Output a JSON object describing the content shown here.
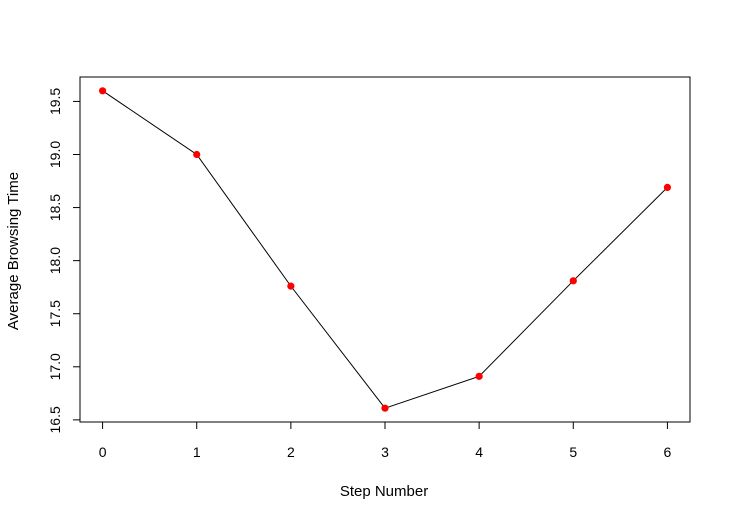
{
  "chart_data": {
    "type": "line",
    "title": "",
    "xlabel": "Step Number",
    "ylabel": "Average Browsing Time",
    "x": [
      0,
      1,
      2,
      3,
      4,
      5,
      6
    ],
    "y": [
      19.6,
      19.0,
      17.76,
      16.61,
      16.91,
      17.81,
      18.69
    ],
    "xticks": [
      "0",
      "1",
      "2",
      "3",
      "4",
      "5",
      "6"
    ],
    "yticks": [
      "16.5",
      "17.0",
      "17.5",
      "18.0",
      "18.5",
      "19.0",
      "19.5"
    ],
    "xlim": [
      -0.24,
      6.24
    ],
    "ylim": [
      16.48,
      19.73
    ],
    "line_color": "#000000",
    "point_color": "#ff0000",
    "grid": false,
    "legend": "none"
  }
}
